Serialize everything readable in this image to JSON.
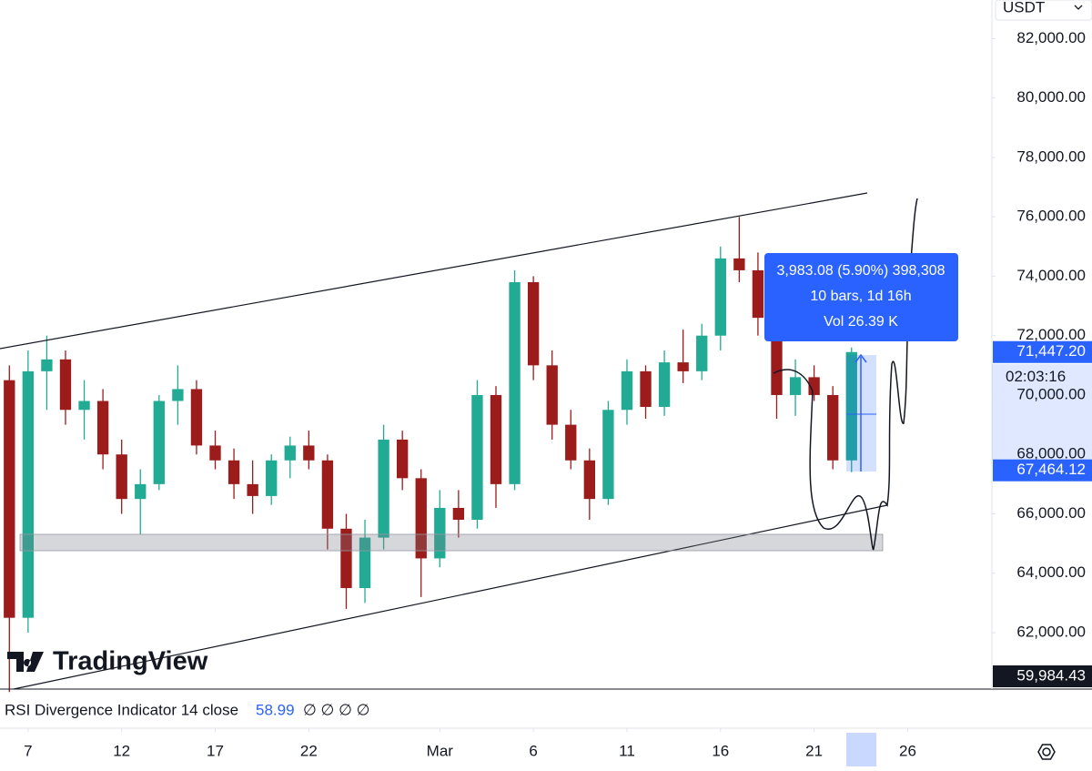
{
  "chart_data": {
    "type": "candlestick",
    "symbol_currency": "USDT",
    "x": [
      -1,
      0,
      1,
      2,
      3,
      4,
      5,
      6,
      7,
      8,
      9,
      10,
      11,
      12,
      13,
      14,
      15,
      16,
      17,
      18,
      19,
      20,
      21,
      22,
      23,
      24,
      25,
      26,
      27,
      28,
      29,
      30,
      31,
      32,
      33,
      34,
      35,
      36,
      37,
      38,
      39,
      40,
      41,
      42,
      43,
      44
    ],
    "ohlc": [
      [
        70500,
        71000,
        60000,
        62500
      ],
      [
        62500,
        71500,
        62000,
        70800
      ],
      [
        70800,
        72000,
        69500,
        71200
      ],
      [
        71200,
        71500,
        69000,
        69500
      ],
      [
        69500,
        70500,
        68500,
        69800
      ],
      [
        69800,
        70200,
        67500,
        68000
      ],
      [
        68000,
        68500,
        66000,
        66500
      ],
      [
        66500,
        67500,
        65300,
        67000
      ],
      [
        67000,
        70000,
        66800,
        69800
      ],
      [
        69800,
        71000,
        69000,
        70200
      ],
      [
        70200,
        70500,
        68000,
        68300
      ],
      [
        68300,
        68800,
        67500,
        67800
      ],
      [
        67800,
        68200,
        66500,
        67000
      ],
      [
        67000,
        67800,
        66000,
        66600
      ],
      [
        66600,
        68000,
        66300,
        67800
      ],
      [
        67800,
        68600,
        67200,
        68300
      ],
      [
        68300,
        68800,
        67500,
        67800
      ],
      [
        67800,
        68000,
        64800,
        65500
      ],
      [
        65500,
        66000,
        62800,
        63500
      ],
      [
        63500,
        65800,
        63000,
        65200
      ],
      [
        65200,
        69000,
        64800,
        68500
      ],
      [
        68500,
        68800,
        66800,
        67200
      ],
      [
        67200,
        67500,
        63200,
        64500
      ],
      [
        64500,
        66800,
        64200,
        66200
      ],
      [
        66200,
        66800,
        65200,
        65800
      ],
      [
        65800,
        70500,
        65500,
        70000
      ],
      [
        70000,
        70300,
        66200,
        67000
      ],
      [
        67000,
        74200,
        66800,
        73800
      ],
      [
        73800,
        74000,
        70500,
        71000
      ],
      [
        71000,
        71500,
        68500,
        69000
      ],
      [
        69000,
        69500,
        67500,
        67800
      ],
      [
        67800,
        68200,
        65800,
        66500
      ],
      [
        66500,
        69800,
        66300,
        69500
      ],
      [
        69500,
        71200,
        69000,
        70800
      ],
      [
        70800,
        71000,
        69200,
        69600
      ],
      [
        69600,
        71500,
        69300,
        71100
      ],
      [
        71100,
        72200,
        70400,
        70800
      ],
      [
        70800,
        72400,
        70500,
        72000
      ],
      [
        72000,
        75000,
        71500,
        74600
      ],
      [
        74600,
        76000,
        73800,
        74200
      ],
      [
        74200,
        74800,
        72000,
        72600
      ],
      [
        72600,
        73000,
        69200,
        70000
      ],
      [
        70000,
        71200,
        69300,
        70600
      ],
      [
        70600,
        71000,
        69800,
        70000
      ],
      [
        70000,
        70300,
        67500,
        67800
      ],
      [
        67800,
        71600,
        67400,
        71447.2
      ]
    ],
    "up_color": "#22ab94",
    "down_color": "#9c1c1c",
    "xlim": [
      -1.5,
      51.5
    ],
    "xticks": [
      {
        "value": 0,
        "label": "7"
      },
      {
        "value": 5,
        "label": "12"
      },
      {
        "value": 10,
        "label": "17"
      },
      {
        "value": 15,
        "label": "22"
      },
      {
        "value": 22,
        "label": "Mar"
      },
      {
        "value": 27,
        "label": "6"
      },
      {
        "value": 32,
        "label": "11"
      },
      {
        "value": 37,
        "label": "16"
      },
      {
        "value": 42,
        "label": "21"
      },
      {
        "value": 47,
        "label": "26"
      }
    ],
    "ylim": [
      60100,
      83300
    ],
    "yticks": [
      {
        "value": 62000,
        "label": "62,000.00"
      },
      {
        "value": 64000,
        "label": "64,000.00"
      },
      {
        "value": 66000,
        "label": "66,000.00"
      },
      {
        "value": 68000,
        "label": "68,000.00"
      },
      {
        "value": 70000,
        "label": "70,000.00"
      },
      {
        "value": 72000,
        "label": "72,000.00"
      },
      {
        "value": 74000,
        "label": "74,000.00"
      },
      {
        "value": 76000,
        "label": "76,000.00"
      },
      {
        "value": 78000,
        "label": "78,000.00"
      },
      {
        "value": 80000,
        "label": "80,000.00"
      },
      {
        "value": 82000,
        "label": "82,000.00"
      }
    ],
    "price_labels": [
      {
        "value": 71447.2,
        "label": "71,447.20",
        "color": "#2962ff"
      },
      {
        "value": 67464.12,
        "label": "67,464.12",
        "color": "#2962ff"
      },
      {
        "value": 59984.43,
        "label": "59,984.43",
        "color": "#131722"
      }
    ],
    "countdown": "02:03:16",
    "measure": {
      "lines": [
        "3,983.08 (5.90%) 398,308",
        "10 bars, 1d 16h",
        "Vol 26.39 K"
      ]
    },
    "logo": "TradingView",
    "indicator": {
      "name": "RSI Divergence Indicator 14 close",
      "value": 58.99,
      "extra": "∅ ∅ ∅ ∅"
    }
  }
}
